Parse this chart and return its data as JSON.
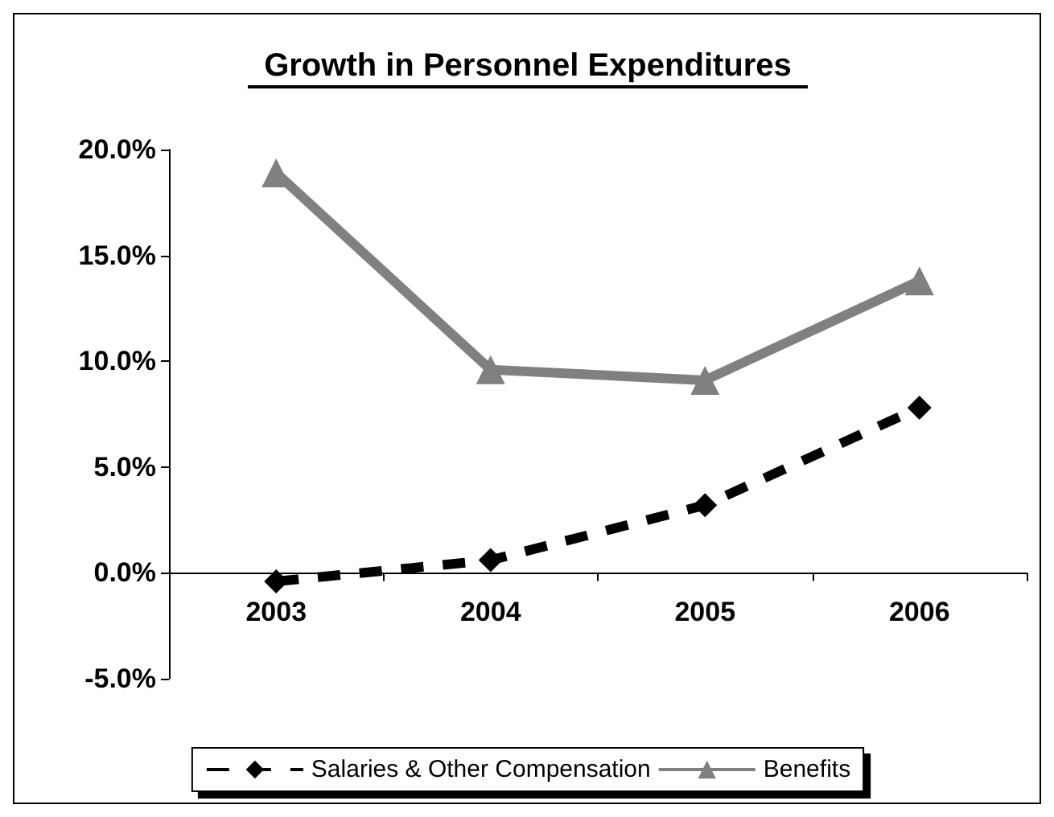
{
  "chart_data": {
    "type": "line",
    "title": "Growth in Personnel Expenditures",
    "categories": [
      "2003",
      "2004",
      "2005",
      "2006"
    ],
    "series": [
      {
        "name": "Salaries & Other Compensation",
        "color": "#000000",
        "values": [
          -0.4,
          0.6,
          3.2,
          7.8
        ],
        "marker": "diamond",
        "line_style": "dashed"
      },
      {
        "name": "Benefits",
        "color": "#808080",
        "values": [
          18.9,
          9.6,
          9.1,
          13.8
        ],
        "marker": "triangle",
        "line_style": "solid"
      }
    ],
    "ylim": [
      -5,
      20
    ],
    "yticks": [
      {
        "value": -5,
        "label": "-5.0%"
      },
      {
        "value": 0,
        "label": "0.0%"
      },
      {
        "value": 5,
        "label": "5.0%"
      },
      {
        "value": 10,
        "label": "10.0%"
      },
      {
        "value": 15,
        "label": "15.0%"
      },
      {
        "value": 20,
        "label": "20.0%"
      }
    ],
    "legend": "bottom"
  }
}
